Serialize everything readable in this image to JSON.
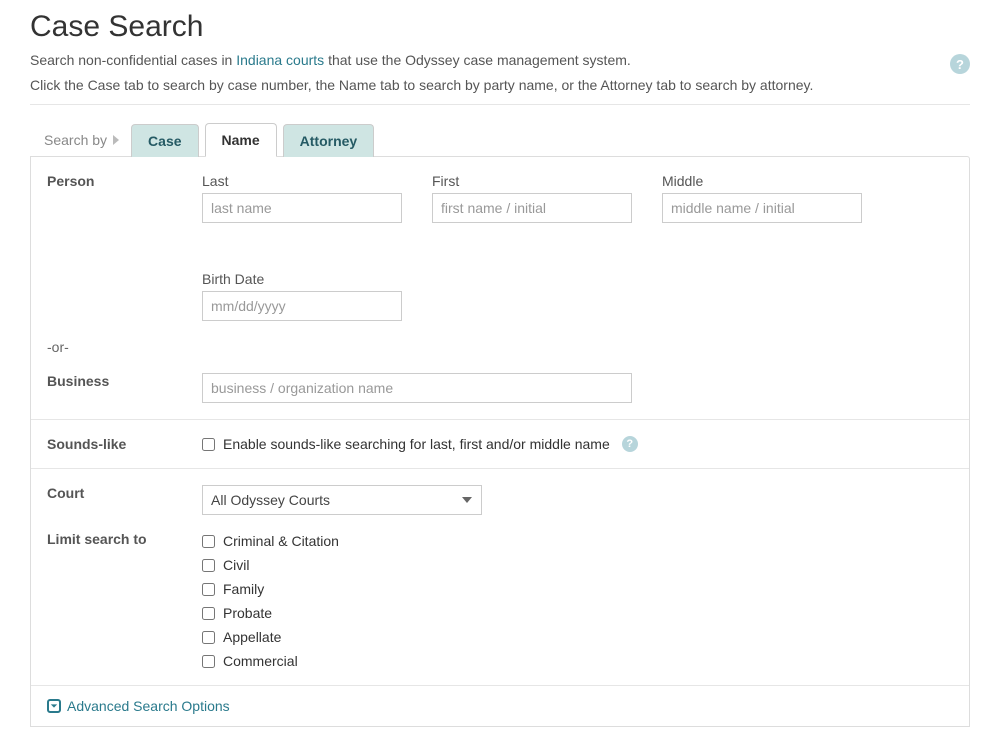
{
  "header": {
    "title": "Case Search",
    "intro1_pre": "Search non-confidential cases in ",
    "intro1_link": "Indiana courts",
    "intro1_post": " that use the Odyssey case management system.",
    "intro2": "Click the Case tab to search by case number, the Name tab to search by party name, or the Attorney tab to search by attorney."
  },
  "tabs": {
    "search_by_label": "Search by",
    "items": [
      {
        "label": "Case",
        "active": false
      },
      {
        "label": "Name",
        "active": true
      },
      {
        "label": "Attorney",
        "active": false
      }
    ]
  },
  "person": {
    "section_label": "Person",
    "last_label": "Last",
    "last_placeholder": "last name",
    "first_label": "First",
    "first_placeholder": "first name / initial",
    "middle_label": "Middle",
    "middle_placeholder": "middle name / initial",
    "birth_label": "Birth Date",
    "birth_placeholder": "mm/dd/yyyy"
  },
  "or_label": "-or-",
  "business": {
    "section_label": "Business",
    "placeholder": "business / organization name"
  },
  "sounds_like": {
    "section_label": "Sounds-like",
    "checkbox_label": "Enable sounds-like searching for last, first and/or middle name"
  },
  "court": {
    "section_label": "Court",
    "selected": "All Odyssey Courts"
  },
  "limit": {
    "section_label": "Limit search to",
    "options": [
      "Criminal & Citation",
      "Civil",
      "Family",
      "Probate",
      "Appellate",
      "Commercial"
    ]
  },
  "advanced_label": "Advanced Search Options",
  "colors": {
    "tab_bg": "#cfe5e3",
    "tab_text": "#255a64",
    "link": "#2a7a8c",
    "border": "#dddddd",
    "help_bg": "#b7d5db"
  }
}
